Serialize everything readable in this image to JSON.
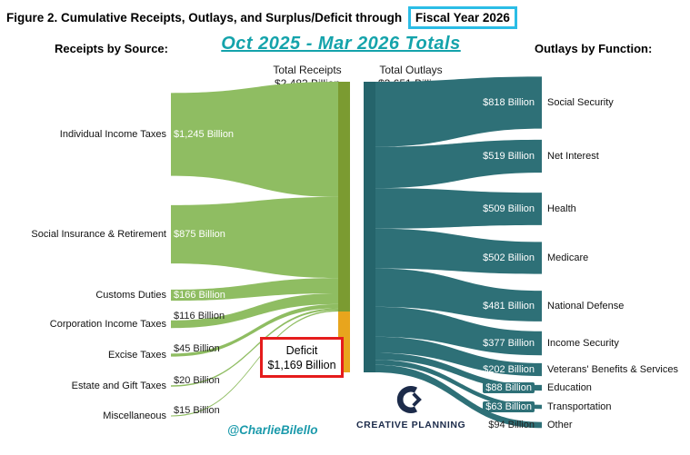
{
  "title": {
    "prefix": "Figure 2. Cumulative Receipts, Outlays, and Surplus/Deficit through",
    "highlight": "Fiscal Year 2026"
  },
  "subtitle": "Oct 2025 - Mar 2026 Totals",
  "left_header": "Receipts by Source:",
  "right_header": "Outlays by Function:",
  "totals": {
    "receipts_label": "Total Receipts",
    "receipts_value": "$2,483 Billion",
    "outlays_label": "Total Outlays",
    "outlays_value": "$3,651 Billion"
  },
  "deficit": {
    "label": "Deficit",
    "value": "$1,169 Billion"
  },
  "attribution": "@CharlieBilello",
  "logo": {
    "line1": "CREATIVE",
    "line2": "PLANNING"
  },
  "colors": {
    "receipt_flow": "#8fbd62",
    "receipt_bar": "#7b9b31",
    "deficit_bar": "#e8a51d",
    "outlay_flow": "#2e7077",
    "outlay_bar": "#25646b",
    "subtitle_teal": "#14a3ab",
    "highlight_box_cyan": "#2bbde6",
    "deficit_box_red": "#e51c1c",
    "logo_navy": "#1c2b4a"
  },
  "chart_data": {
    "type": "sankey",
    "title": "Figure 2. Cumulative Receipts, Outlays, and Surplus/Deficit through Fiscal Year 2026",
    "subtitle": "Oct 2025 - Mar 2026 Totals",
    "total_receipts": 2483,
    "total_outlays": 3651,
    "deficit": 1169,
    "receipts": [
      {
        "label": "Individual Income Taxes",
        "value": 1245,
        "value_label": "$1,245 Billion"
      },
      {
        "label": "Social Insurance & Retirement",
        "value": 875,
        "value_label": "$875 Billion"
      },
      {
        "label": "Customs Duties",
        "value": 166,
        "value_label": "$166 Billion"
      },
      {
        "label": "Corporation Income Taxes",
        "value": 116,
        "value_label": "$116 Billion"
      },
      {
        "label": "Excise Taxes",
        "value": 45,
        "value_label": "$45 Billion"
      },
      {
        "label": "Estate and Gift Taxes",
        "value": 20,
        "value_label": "$20 Billion"
      },
      {
        "label": "Miscellaneous",
        "value": 15,
        "value_label": "$15 Billion"
      }
    ],
    "outlays": [
      {
        "label": "Social Security",
        "value": 818,
        "value_label": "$818 Billion"
      },
      {
        "label": "Net Interest",
        "value": 519,
        "value_label": "$519 Billion"
      },
      {
        "label": "Health",
        "value": 509,
        "value_label": "$509 Billion"
      },
      {
        "label": "Medicare",
        "value": 502,
        "value_label": "$502 Billion"
      },
      {
        "label": "National Defense",
        "value": 481,
        "value_label": "$481 Billion"
      },
      {
        "label": "Income Security",
        "value": 377,
        "value_label": "$377 Billion"
      },
      {
        "label": "Veterans' Benefits & Services",
        "value": 202,
        "value_label": "$202 Billion"
      },
      {
        "label": "Education",
        "value": 88,
        "value_label": "$88 Billion"
      },
      {
        "label": "Transportation",
        "value": 63,
        "value_label": "$63 Billion"
      },
      {
        "label": "Other",
        "value": 94,
        "value_label": "$94 Billion"
      }
    ]
  }
}
